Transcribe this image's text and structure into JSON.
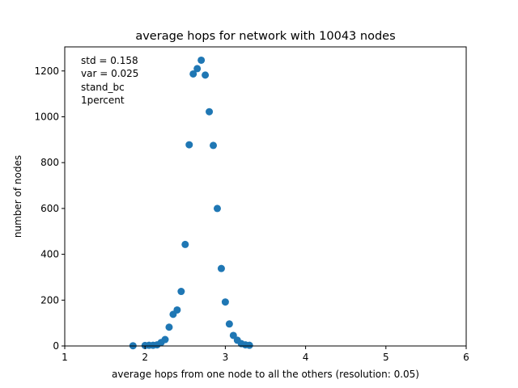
{
  "chart_data": {
    "type": "scatter",
    "title": "average hops for network with 10043 nodes",
    "xlabel": "average hops from one node to all  the others (resolution: 0.05)",
    "ylabel": "number of nodes",
    "xlim": [
      1,
      6
    ],
    "ylim": [
      0,
      1305
    ],
    "xticks": [
      1,
      2,
      3,
      4,
      5,
      6
    ],
    "yticks": [
      0,
      200,
      400,
      600,
      800,
      1000,
      1200
    ],
    "annotation": [
      "std = 0.158",
      "var = 0.025",
      "stand_bc",
      "1percent"
    ],
    "grid": false,
    "marker_color": "#1f77b4",
    "series": [
      {
        "x": [
          1.85,
          2.0,
          2.05,
          2.1,
          2.15,
          2.2,
          2.25,
          2.3,
          2.35,
          2.4,
          2.45,
          2.5,
          2.55,
          2.6,
          2.65,
          2.7,
          2.75,
          2.8,
          2.85,
          2.9,
          2.95,
          3.0,
          3.05,
          3.1,
          3.15,
          3.2,
          3.25,
          3.3
        ],
        "y": [
          1,
          2,
          3,
          3,
          5,
          15,
          28,
          82,
          138,
          157,
          238,
          443,
          878,
          1187,
          1210,
          1247,
          1182,
          1022,
          875,
          600,
          338,
          192,
          96,
          46,
          25,
          10,
          5,
          3
        ]
      }
    ]
  }
}
